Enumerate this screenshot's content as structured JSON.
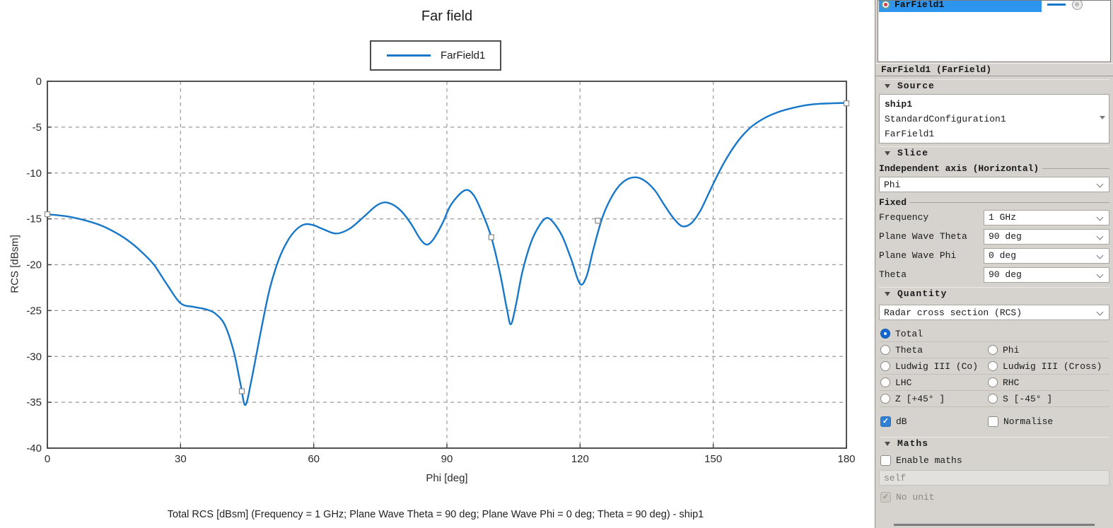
{
  "colors": {
    "curve": "#1777c8",
    "selection": "#2e95ef",
    "control_accent": "#2f80d4",
    "panel_bg": "#d6d3ce",
    "grid": "#9a9a9a",
    "plot_border": "#3f3f3f"
  },
  "chart_data": {
    "type": "line",
    "title": "Far field",
    "xlabel": "Phi [deg]",
    "ylabel": "RCS [dBsm]",
    "caption": "Total RCS [dBsm] (Frequency = 1 GHz; Plane Wave Theta = 90 deg; Plane Wave Phi = 0 deg; Theta = 90 deg) - ship1",
    "xlim": [
      0,
      180
    ],
    "ylim": [
      -40,
      0
    ],
    "xticks": [
      0,
      30,
      60,
      90,
      120,
      150,
      180
    ],
    "yticks": [
      0,
      -5,
      -10,
      -15,
      -20,
      -25,
      -30,
      -35,
      -40
    ],
    "grid": true,
    "legend_position": "top",
    "series": [
      {
        "name": "FarField1",
        "color": "#1777c8",
        "x": [
          0,
          4,
          8,
          12,
          15,
          18,
          21,
          24,
          27,
          30,
          33,
          36,
          38,
          40,
          42,
          43.5,
          44.6,
          46,
          48,
          50,
          52,
          54,
          56,
          58,
          60,
          62,
          65,
          68,
          71,
          74,
          76,
          78,
          80,
          82,
          84,
          85.5,
          87,
          89,
          91,
          94,
          96,
          98,
          100,
          102,
          103.5,
          104.4,
          105.5,
          107,
          109,
          111,
          112.5,
          114,
          116,
          118,
          120,
          121.5,
          123,
          125,
          127,
          129,
          131,
          133,
          135,
          137,
          139,
          141,
          143,
          145,
          147,
          149,
          151,
          153,
          155,
          157,
          159,
          162,
          165,
          168,
          171,
          174,
          177,
          180
        ],
        "y": [
          -14.5,
          -14.7,
          -15.1,
          -15.7,
          -16.4,
          -17.3,
          -18.5,
          -20.0,
          -22.2,
          -24.2,
          -24.6,
          -24.9,
          -25.4,
          -26.6,
          -29.5,
          -33.0,
          -35.3,
          -32.5,
          -27.5,
          -22.8,
          -19.6,
          -17.5,
          -16.2,
          -15.6,
          -15.7,
          -16.1,
          -16.6,
          -16.1,
          -14.9,
          -13.6,
          -13.2,
          -13.5,
          -14.3,
          -15.6,
          -17.2,
          -17.8,
          -17.2,
          -15.5,
          -13.4,
          -11.9,
          -12.4,
          -14.4,
          -17.0,
          -21.0,
          -24.8,
          -26.5,
          -24.5,
          -20.8,
          -17.5,
          -15.6,
          -14.9,
          -15.4,
          -16.9,
          -19.4,
          -22.1,
          -21.2,
          -18.3,
          -14.9,
          -12.7,
          -11.3,
          -10.6,
          -10.5,
          -11.0,
          -12.0,
          -13.5,
          -14.9,
          -15.8,
          -15.5,
          -14.2,
          -12.2,
          -10.2,
          -8.4,
          -6.9,
          -5.7,
          -4.8,
          -3.9,
          -3.3,
          -2.9,
          -2.6,
          -2.45,
          -2.4,
          -2.35
        ],
        "markers": [
          [
            0,
            -14.5
          ],
          [
            43.8,
            -33.8
          ],
          [
            100,
            -17.0
          ],
          [
            124,
            -15.2
          ],
          [
            180,
            -2.4
          ]
        ]
      }
    ]
  },
  "panel": {
    "result_list": {
      "items": [
        {
          "label": "FarField1",
          "selected": true
        }
      ]
    },
    "header": "FarField1 (FarField)",
    "source": {
      "title": "Source",
      "lines": [
        "ship1",
        "StandardConfiguration1",
        "FarField1"
      ]
    },
    "slice": {
      "title": "Slice",
      "independent_axis_label": "Independent axis (Horizontal)",
      "independent_axis_value": "Phi",
      "fixed_label": "Fixed",
      "rows": [
        {
          "label": "Frequency",
          "value": "1 GHz"
        },
        {
          "label": "Plane Wave Theta",
          "value": "90 deg"
        },
        {
          "label": "Plane Wave Phi",
          "value": "0 deg"
        },
        {
          "label": "Theta",
          "value": "90 deg"
        }
      ]
    },
    "quantity": {
      "title": "Quantity",
      "dropdown_value": "Radar cross section (RCS)",
      "radio_rows": [
        {
          "left": {
            "label": "Total",
            "selected": true
          }
        },
        {
          "left": {
            "label": "Theta",
            "selected": false
          },
          "right": {
            "label": "Phi",
            "selected": false
          }
        },
        {
          "left": {
            "label": "Ludwig III (Co)",
            "selected": false
          },
          "right": {
            "label": "Ludwig III (Cross)",
            "selected": false
          }
        },
        {
          "left": {
            "label": "LHC",
            "selected": false
          },
          "right": {
            "label": "RHC",
            "selected": false
          }
        },
        {
          "left": {
            "label": "Z [+45° ]",
            "selected": false
          },
          "right": {
            "label": "S [-45° ]",
            "selected": false
          }
        }
      ],
      "db_check": {
        "label": "dB",
        "checked": true
      },
      "normalise_check": {
        "label": "Normalise",
        "checked": false
      }
    },
    "maths": {
      "title": "Maths",
      "enable_check": {
        "label": "Enable maths",
        "checked": false
      },
      "expression": "self",
      "no_unit_check": {
        "label": "No unit",
        "checked": true
      }
    }
  }
}
